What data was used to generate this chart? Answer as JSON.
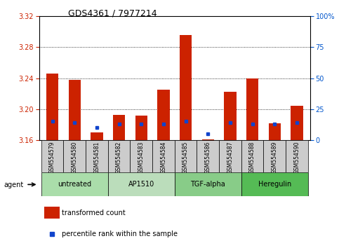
{
  "title": "GDS4361 / 7977214",
  "samples": [
    "GSM554579",
    "GSM554580",
    "GSM554581",
    "GSM554582",
    "GSM554583",
    "GSM554584",
    "GSM554585",
    "GSM554586",
    "GSM554587",
    "GSM554588",
    "GSM554589",
    "GSM554590"
  ],
  "red_values": [
    3.246,
    3.238,
    3.17,
    3.193,
    3.192,
    3.225,
    3.296,
    3.161,
    3.222,
    3.24,
    3.182,
    3.204
  ],
  "blue_values": [
    15,
    14,
    10,
    13,
    13,
    13,
    15,
    5,
    14,
    13,
    13,
    14
  ],
  "ylim_left": [
    3.16,
    3.32
  ],
  "ylim_right": [
    0,
    100
  ],
  "yticks_left": [
    3.16,
    3.2,
    3.24,
    3.28,
    3.32
  ],
  "yticks_right": [
    0,
    25,
    50,
    75,
    100
  ],
  "ylabel_right_ticks": [
    "0",
    "25",
    "50",
    "75",
    "100%"
  ],
  "grid_values": [
    3.2,
    3.24,
    3.28
  ],
  "bar_color": "#cc2200",
  "blue_color": "#1144cc",
  "bar_width": 0.55,
  "groups": [
    {
      "label": "untreated",
      "start": 0,
      "end": 2,
      "color": "#aaddaa"
    },
    {
      "label": "AP1510",
      "start": 3,
      "end": 5,
      "color": "#bbddbb"
    },
    {
      "label": "TGF-alpha",
      "start": 6,
      "end": 8,
      "color": "#88cc88"
    },
    {
      "label": "Heregulin",
      "start": 9,
      "end": 11,
      "color": "#55bb55"
    }
  ],
  "legend_items": [
    {
      "label": "transformed count",
      "color": "#cc2200",
      "type": "rect"
    },
    {
      "label": "percentile rank within the sample",
      "color": "#1144cc",
      "type": "square"
    }
  ],
  "agent_label": "agent",
  "tick_label_color_left": "#cc2200",
  "axis_color_right": "#0055cc",
  "base_value": 3.16,
  "gray_box_color": "#cccccc"
}
